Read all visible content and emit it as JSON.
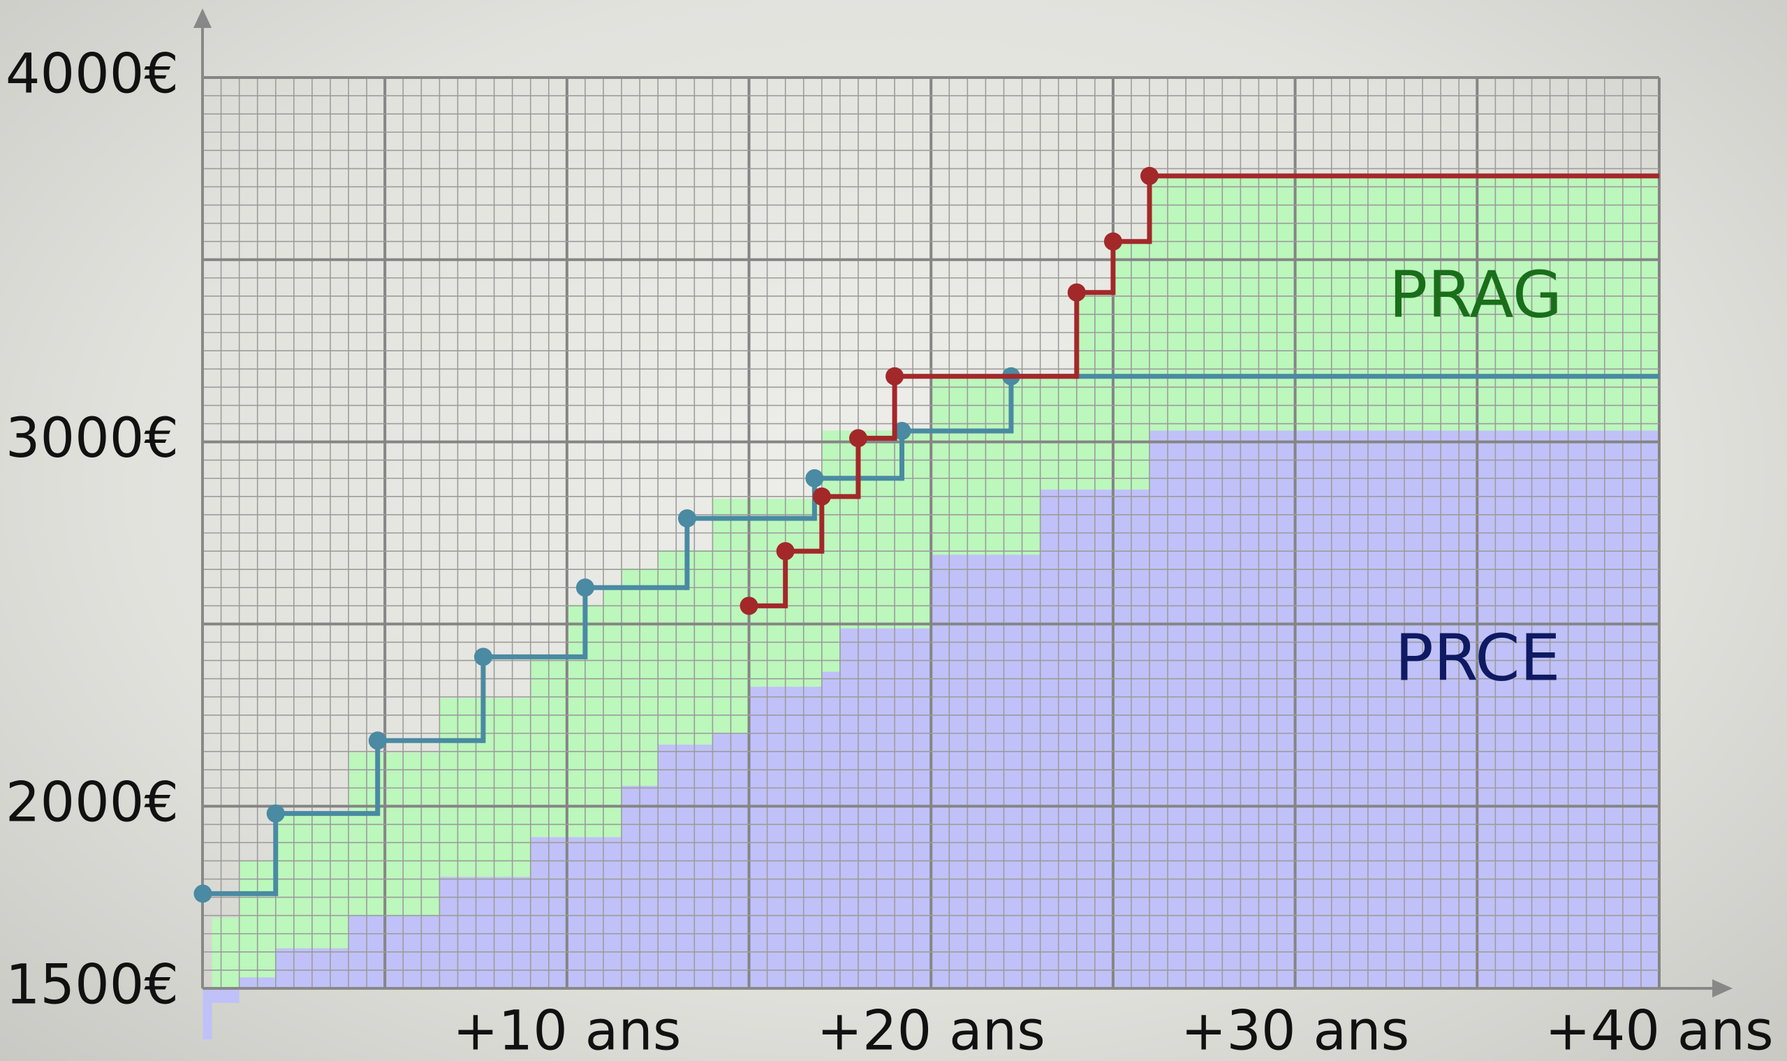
{
  "chart_data": {
    "type": "step",
    "xlim": [
      0,
      40
    ],
    "ylim": [
      1500,
      4000
    ],
    "xticks": [
      {
        "value": 10,
        "label": "+10 ans"
      },
      {
        "value": 20,
        "label": "+20 ans"
      },
      {
        "value": 30,
        "label": "+30 ans"
      },
      {
        "value": 40,
        "label": "+40 ans"
      }
    ],
    "yticks": [
      {
        "value": 1500,
        "label": "1500€"
      },
      {
        "value": 2000,
        "label": "2000€"
      },
      {
        "value": 3000,
        "label": "3000€"
      },
      {
        "value": 4000,
        "label": "4000€"
      }
    ],
    "grid": {
      "x_major": 5,
      "x_minor": 0.5,
      "y_major": 500,
      "y_minor": 50
    },
    "areas": [
      {
        "name": "PRAG",
        "color": "#bcf7bc",
        "label_color": "#1a6e1a",
        "edges": [
          0.25,
          1,
          2,
          4,
          6.5,
          9,
          10,
          11,
          11.5,
          12.5,
          14,
          17,
          20,
          24,
          25,
          26,
          40
        ],
        "values": [
          1694,
          1850,
          1981,
          2147,
          2297,
          2412,
          2553,
          2606,
          2653,
          2703,
          2844,
          3031,
          3178,
          3409,
          3547,
          3728
        ]
      },
      {
        "name": "PRCE",
        "color": "#c0c1f8",
        "label_color": "#0e1a62",
        "edges": [
          0,
          0.25,
          1,
          2,
          4,
          6.5,
          9,
          11.5,
          12.5,
          14,
          15,
          17,
          17.5,
          20,
          23,
          26,
          40
        ],
        "values": [
          1360,
          1460,
          1530,
          1610,
          1700,
          1806,
          1915,
          2056,
          2169,
          2200,
          2328,
          2369,
          2488,
          2690,
          2869,
          3031
        ]
      }
    ],
    "series": [
      {
        "color": "#4a8aa2",
        "x": [
          0,
          2,
          4.8,
          7.7,
          10.5,
          13.3,
          16.8,
          19.2,
          22.2
        ],
        "values": [
          1760,
          1980,
          2180,
          2410,
          2600,
          2790,
          2900,
          3030,
          3180
        ]
      },
      {
        "color": "#a3282a",
        "x": [
          15,
          16,
          17,
          18,
          19,
          24,
          25,
          26
        ],
        "values": [
          2550,
          2700,
          2850,
          3010,
          3180,
          3410,
          3550,
          3730
        ]
      }
    ]
  }
}
